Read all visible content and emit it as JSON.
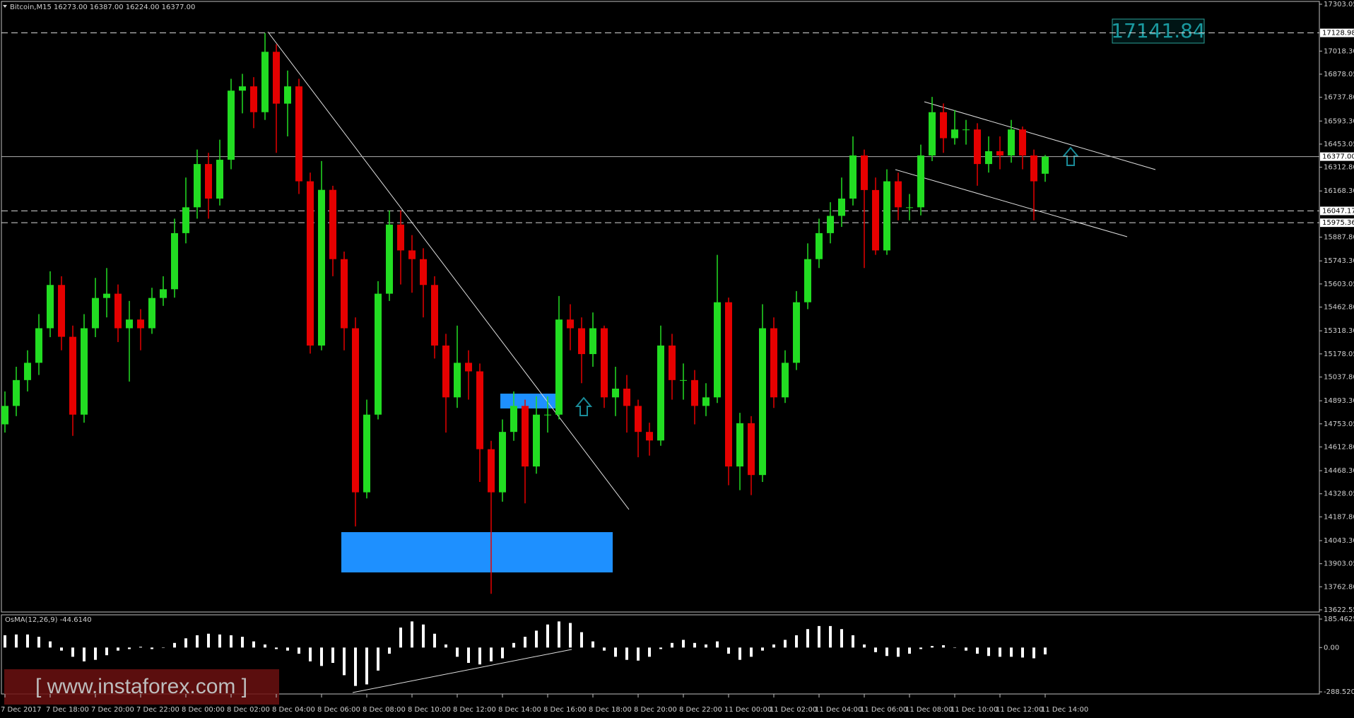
{
  "chart_data": [
    {
      "type": "candlestick",
      "title": "Bitcoin,M15  16273.00 16387.00 16224.00 16377.00",
      "up_color": "#22dd22",
      "down_color": "#e60000",
      "grid": false,
      "open": [
        14750,
        14862,
        15019,
        15124,
        15334,
        15597,
        15282,
        14809,
        15334,
        15518,
        15544,
        15334,
        15387,
        15334,
        15518,
        15571,
        15912,
        16069,
        16332,
        16122,
        16358,
        16778,
        16804,
        16647,
        17014,
        16699,
        16804,
        16227,
        15229,
        16175,
        15754,
        15334,
        14337,
        14809,
        15544,
        15964,
        15807,
        15754,
        15597,
        15229,
        14914,
        15124,
        15072,
        14599,
        14337,
        14704,
        14862,
        14494,
        14809,
        14809,
        15387,
        15334,
        15177,
        15334,
        14914,
        14967,
        14862,
        14704,
        14652,
        15229,
        15019,
        15019,
        14862,
        14914,
        15492,
        14494,
        14757,
        14442,
        15334,
        14914,
        15124,
        15492,
        15754,
        15912,
        16017,
        16122,
        16384,
        16174,
        15807,
        16227,
        16069,
        16069,
        16384,
        16647,
        16489,
        16542,
        16542,
        16332,
        16410,
        16384,
        16542,
        16384,
        16273
      ],
      "high": [
        14950,
        15100,
        15200,
        15420,
        15680,
        15650,
        15350,
        15420,
        15640,
        15700,
        15600,
        15500,
        15450,
        15580,
        15650,
        16000,
        16250,
        16420,
        16400,
        16480,
        16850,
        16880,
        16860,
        17128,
        17060,
        16900,
        16850,
        16280,
        16350,
        16200,
        15800,
        15400,
        14900,
        15620,
        16050,
        16050,
        15900,
        15820,
        15650,
        15300,
        15350,
        15200,
        15120,
        14650,
        14780,
        14950,
        14900,
        14920,
        14920,
        15530,
        15480,
        15400,
        15430,
        15350,
        15100,
        15050,
        14900,
        14760,
        15350,
        15300,
        15120,
        15080,
        15000,
        15780,
        15520,
        14820,
        14800,
        15480,
        15400,
        15200,
        15560,
        15850,
        16000,
        16100,
        16250,
        16500,
        16420,
        16250,
        16300,
        16280,
        16150,
        16450,
        16740,
        16700,
        16660,
        16600,
        16580,
        16500,
        16500,
        16600,
        16560,
        16420,
        16387
      ],
      "low": [
        14700,
        14800,
        14950,
        15050,
        15280,
        15200,
        14680,
        14760,
        15280,
        15400,
        15250,
        15010,
        15200,
        15300,
        15470,
        15520,
        15850,
        16000,
        16000,
        16080,
        16300,
        16640,
        16550,
        16600,
        16400,
        16500,
        16150,
        15180,
        15200,
        15650,
        15200,
        14130,
        14300,
        14780,
        15500,
        15600,
        15550,
        15400,
        15150,
        14700,
        14850,
        14900,
        14400,
        13720,
        14280,
        14650,
        14270,
        14450,
        14700,
        14780,
        15200,
        15000,
        15100,
        14850,
        14800,
        14700,
        14550,
        14560,
        14620,
        14900,
        14900,
        14750,
        14800,
        14880,
        14380,
        14350,
        14320,
        14400,
        14850,
        14880,
        15080,
        15450,
        15700,
        15850,
        15950,
        16080,
        15700,
        15780,
        15780,
        15990,
        15990,
        16020,
        16350,
        16400,
        16450,
        16450,
        16200,
        16280,
        16300,
        16340,
        16300,
        15990,
        16224
      ],
      "close": [
        14862,
        15019,
        15124,
        15334,
        15597,
        15282,
        14809,
        15334,
        15518,
        15544,
        15334,
        15387,
        15334,
        15518,
        15571,
        15912,
        16069,
        16332,
        16122,
        16358,
        16778,
        16804,
        16647,
        17014,
        16699,
        16804,
        16227,
        15229,
        16175,
        15754,
        15334,
        14337,
        14809,
        15544,
        15964,
        15807,
        15754,
        15597,
        15229,
        14914,
        15124,
        15072,
        14599,
        14337,
        14704,
        14862,
        14494,
        14809,
        14809,
        15387,
        15334,
        15177,
        15334,
        14914,
        14967,
        14862,
        14704,
        14652,
        15229,
        15019,
        15019,
        14862,
        14914,
        15492,
        14494,
        14757,
        14442,
        15334,
        14914,
        15124,
        15492,
        15754,
        15912,
        16017,
        16122,
        16384,
        16174,
        15807,
        16227,
        16069,
        16069,
        16384,
        16647,
        16489,
        16542,
        16542,
        16332,
        16410,
        16384,
        16542,
        16384,
        16227,
        16377
      ],
      "ylim": [
        13622.55,
        17303.05
      ],
      "yticks": [
        17303.05,
        {
          "value": 17018.3,
          "label": "17018.30"
        },
        16878.05,
        {
          "value": 16737.8,
          "label": "16737.80"
        },
        {
          "value": 16593.3,
          "label": "16593.30"
        },
        16453.05,
        {
          "value": 16312.8,
          "label": "16312.80"
        },
        {
          "value": 16168.3,
          "label": "16168.30"
        },
        {
          "value": 15887.8,
          "label": "15887.80"
        },
        {
          "value": 15743.3,
          "label": "15743.30"
        },
        15603.05,
        {
          "value": 15462.8,
          "label": "15462.80"
        },
        {
          "value": 15318.3,
          "label": "15318.30"
        },
        15178.05,
        {
          "value": 15037.8,
          "label": "15037.80"
        },
        {
          "value": 14893.3,
          "label": "14893.30"
        },
        14753.05,
        {
          "value": 14612.8,
          "label": "14612.80"
        },
        {
          "value": 14468.3,
          "label": "14468.30"
        },
        14328.05,
        {
          "value": 14187.8,
          "label": "14187.80"
        },
        {
          "value": 14043.3,
          "label": "14043.30"
        },
        13903.05,
        {
          "value": 13762.8,
          "label": "13762.80"
        },
        13622.55
      ],
      "xticks": [
        {
          "value": 0,
          "label": "7 Dec 2017"
        },
        {
          "value": 4,
          "label": "7 Dec 18:00"
        },
        {
          "value": 8,
          "label": "7 Dec 20:00"
        },
        {
          "value": 12,
          "label": "7 Dec 22:00"
        },
        {
          "value": 16,
          "label": "8 Dec 00:00"
        },
        {
          "value": 20,
          "label": "8 Dec 02:00"
        },
        {
          "value": 24,
          "label": "8 Dec 04:00"
        },
        {
          "value": 28,
          "label": "8 Dec 06:00"
        },
        {
          "value": 32,
          "label": "8 Dec 08:00"
        },
        {
          "value": 36,
          "label": "8 Dec 10:00"
        },
        {
          "value": 40,
          "label": "8 Dec 12:00"
        },
        {
          "value": 44,
          "label": "8 Dec 14:00"
        },
        {
          "value": 48,
          "label": "8 Dec 16:00"
        },
        {
          "value": 52,
          "label": "8 Dec 18:00"
        },
        {
          "value": 56,
          "label": "8 Dec 20:00"
        },
        {
          "value": 60,
          "label": "8 Dec 22:00"
        },
        {
          "value": 64,
          "label": "11 Dec 00:00"
        },
        {
          "value": 68,
          "label": "11 Dec 02:00"
        },
        {
          "value": 72,
          "label": "11 Dec 04:00"
        },
        {
          "value": 76,
          "label": "11 Dec 06:00"
        },
        {
          "value": 80,
          "label": "11 Dec 08:00"
        },
        {
          "value": 84,
          "label": "11 Dec 10:00"
        },
        {
          "value": 88,
          "label": "11 Dec 12:00"
        },
        {
          "value": 92,
          "label": "11 Dec 14:00"
        }
      ],
      "levels": [
        17128.98,
        16047.17,
        15975.36
      ],
      "bid": {
        "value": 16377,
        "label": "16377.00"
      },
      "price_label": 17141.84,
      "watermark": "[ www.instaforex.com ]"
    },
    {
      "type": "bar",
      "title": "OsMA(12,26,9) -44.6140",
      "color": "#ffffff",
      "values": [
        80,
        85,
        85,
        70,
        40,
        -20,
        -60,
        -90,
        -80,
        -50,
        -20,
        -10,
        5,
        -10,
        0,
        30,
        60,
        80,
        90,
        85,
        80,
        70,
        40,
        20,
        -10,
        -20,
        -40,
        -90,
        -120,
        -100,
        -180,
        -250,
        -240,
        -150,
        -40,
        130,
        170,
        150,
        90,
        20,
        -60,
        -100,
        -110,
        -90,
        -70,
        30,
        70,
        110,
        150,
        170,
        160,
        100,
        40,
        -20,
        -60,
        -80,
        -85,
        -60,
        -10,
        30,
        50,
        30,
        20,
        40,
        -40,
        -80,
        -60,
        -20,
        20,
        50,
        80,
        120,
        140,
        140,
        120,
        80,
        20,
        -30,
        -55,
        -60,
        -40,
        -10,
        10,
        15,
        0,
        -20,
        -40,
        -55,
        -60,
        -60,
        -65,
        -70,
        -44.614
      ],
      "ylim": [
        -288.5205,
        185.4625
      ],
      "yticks": [
        185.4625,
        {
          "value": 0,
          "label": "0.00"
        },
        -288.5205
      ]
    }
  ]
}
